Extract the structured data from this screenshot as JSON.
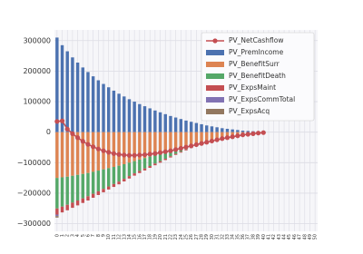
{
  "chart_data": {
    "type": "bar",
    "stacked": true,
    "legend": "upper right",
    "grid": true,
    "categories": [
      "0",
      "1",
      "2",
      "3",
      "4",
      "5",
      "6",
      "7",
      "8",
      "9",
      "10",
      "11",
      "12",
      "13",
      "14",
      "15",
      "16",
      "17",
      "18",
      "19",
      "20",
      "21",
      "22",
      "23",
      "24",
      "25",
      "26",
      "27",
      "28",
      "29",
      "30",
      "31",
      "32",
      "33",
      "34",
      "35",
      "36",
      "37",
      "38",
      "39",
      "40",
      "41",
      "42",
      "43",
      "44",
      "45",
      "46",
      "47",
      "48",
      "49",
      "50"
    ],
    "ylim": [
      -325000,
      335000
    ],
    "yticks": [
      {
        "value": -300000,
        "label": "−300000"
      },
      {
        "value": -200000,
        "label": "−200000"
      },
      {
        "value": -100000,
        "label": "−100000"
      },
      0,
      100000,
      200000,
      300000
    ],
    "series": [
      {
        "name": "PV_NetCashflow",
        "type": "line",
        "color": "#c44e52",
        "values": [
          35000,
          37000,
          10000,
          -5000,
          -18000,
          -30000,
          -40000,
          -48000,
          -55000,
          -61000,
          -66000,
          -70000,
          -73000,
          -75000,
          -76000,
          -76000,
          -75000,
          -74000,
          -72000,
          -70000,
          -67000,
          -64000,
          -61000,
          -57000,
          -53000,
          -49000,
          -45000,
          -41000,
          -37000,
          -33000,
          -29000,
          -25000,
          -21000,
          -18000,
          -15000,
          -12000,
          -9000,
          -7000,
          -5000,
          -3000,
          -1500,
          null,
          null,
          null,
          null,
          null,
          null,
          null,
          null,
          null,
          null
        ]
      },
      {
        "name": "PV_PremIncome",
        "type": "bar",
        "color": "#4c72b0",
        "values": [
          310000,
          285000,
          265000,
          245000,
          228000,
          212000,
          197000,
          183000,
          170000,
          158000,
          147000,
          136000,
          126000,
          117000,
          108000,
          100000,
          92000,
          85000,
          78000,
          71000,
          65000,
          59000,
          53000,
          48000,
          43000,
          38000,
          34000,
          30000,
          26000,
          22000,
          19000,
          16000,
          13000,
          11000,
          9000,
          7000,
          5000,
          4000,
          3000,
          2000,
          1000,
          null,
          null,
          null,
          null,
          null,
          null,
          null,
          null,
          null,
          null
        ]
      },
      {
        "name": "PV_BenefitSurr",
        "type": "bar",
        "color": "#dd8452",
        "values": [
          -150000,
          -148000,
          -146000,
          -143000,
          -140000,
          -137000,
          -134000,
          -130000,
          -126000,
          -122000,
          -118000,
          -114000,
          -110000,
          -105000,
          -100000,
          -95000,
          -90000,
          -85000,
          -80000,
          -75000,
          -70000,
          -65000,
          -60000,
          -55000,
          -50000,
          -45000,
          -40000,
          -36000,
          -32000,
          -28000,
          -24000,
          -20000,
          -17000,
          -14000,
          -11000,
          -9000,
          -7000,
          -5000,
          -3500,
          -2000,
          -1000,
          null,
          null,
          null,
          null,
          null,
          null,
          null,
          null,
          null,
          null
        ]
      },
      {
        "name": "PV_BenefitDeath",
        "type": "bar",
        "color": "#55a868",
        "values": [
          -100000,
          -96000,
          -92000,
          -88000,
          -84000,
          -80000,
          -76000,
          -72000,
          -68000,
          -64000,
          -60000,
          -56000,
          -52000,
          -48000,
          -44000,
          -40000,
          -37000,
          -34000,
          -31000,
          -28000,
          -25000,
          -22000,
          -19000,
          -16000,
          -14000,
          -12000,
          -10000,
          -8500,
          -7000,
          -5500,
          -4500,
          -3500,
          -2800,
          -2200,
          -1600,
          -1200,
          -900,
          -600,
          -400,
          -200,
          -100,
          null,
          null,
          null,
          null,
          null,
          null,
          null,
          null,
          null,
          null
        ]
      },
      {
        "name": "PV_ExpsMaint",
        "type": "bar",
        "color": "#c44e52",
        "values": [
          -20000,
          -19000,
          -18000,
          -17000,
          -16000,
          -15000,
          -14000,
          -13000,
          -12000,
          -11000,
          -10000,
          -9500,
          -9000,
          -8500,
          -8000,
          -7500,
          -7000,
          -6500,
          -6000,
          -5500,
          -5000,
          -4500,
          -4000,
          -3500,
          -3000,
          -2600,
          -2200,
          -1800,
          -1500,
          -1200,
          -1000,
          -800,
          -600,
          -500,
          -400,
          -300,
          -200,
          -150,
          -100,
          -50,
          -20,
          null,
          null,
          null,
          null,
          null,
          null,
          null,
          null,
          null,
          null
        ]
      },
      {
        "name": "PV_ExpsCommTotal",
        "type": "bar",
        "color": "#8172b3",
        "values": [
          -5000,
          0,
          0,
          0,
          0,
          0,
          0,
          0,
          0,
          0,
          0,
          0,
          0,
          0,
          0,
          0,
          0,
          0,
          0,
          0,
          0,
          0,
          0,
          0,
          0,
          0,
          0,
          0,
          0,
          0,
          0,
          0,
          0,
          0,
          0,
          0,
          0,
          0,
          0,
          0,
          0,
          null,
          null,
          null,
          null,
          null,
          null,
          null,
          null,
          null,
          null
        ]
      },
      {
        "name": "PV_ExpsAcq",
        "type": "bar",
        "color": "#937860",
        "values": [
          -5000,
          0,
          0,
          0,
          0,
          0,
          0,
          0,
          0,
          0,
          0,
          0,
          0,
          0,
          0,
          0,
          0,
          0,
          0,
          0,
          0,
          0,
          0,
          0,
          0,
          0,
          0,
          0,
          0,
          0,
          0,
          0,
          0,
          0,
          0,
          0,
          0,
          0,
          0,
          0,
          0,
          null,
          null,
          null,
          null,
          null,
          null,
          null,
          null,
          null,
          null
        ]
      }
    ]
  }
}
